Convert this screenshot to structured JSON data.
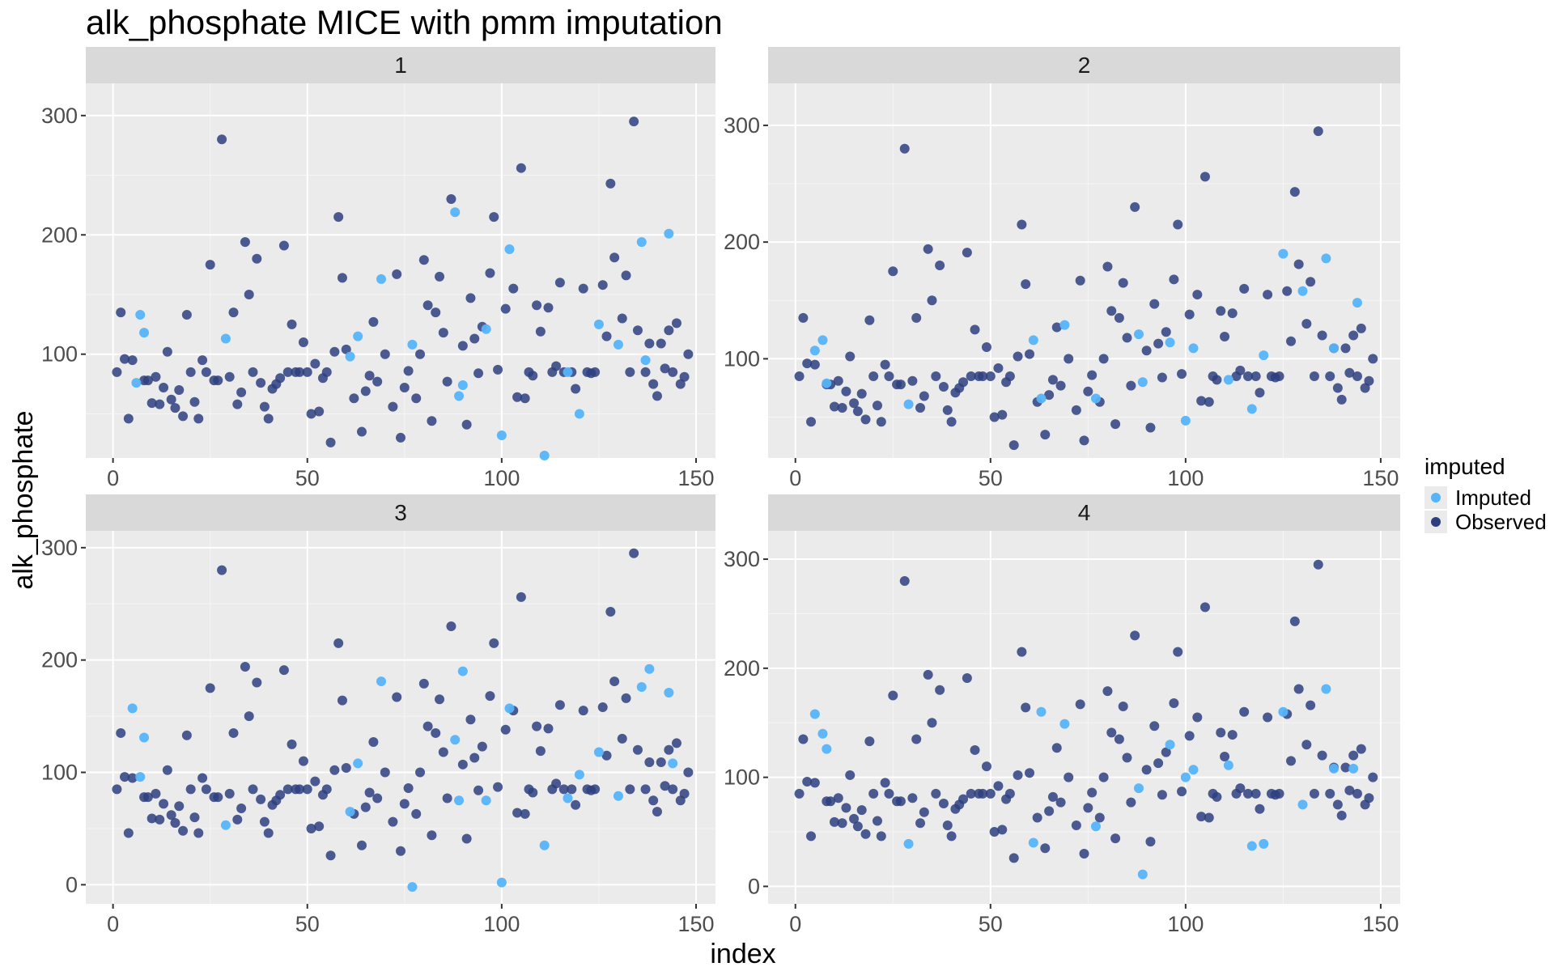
{
  "chart_data": {
    "type": "scatter",
    "title": "alk_phosphate MICE with pmm imputation",
    "xlabel": "index",
    "ylabel": "alk_phosphate",
    "xlim": [
      -7,
      155
    ],
    "x_ticks": [
      0,
      50,
      100,
      150
    ],
    "legend": {
      "title": "imputed",
      "position": "right",
      "entries": [
        {
          "label": "Imputed",
          "color": "#56B4F9"
        },
        {
          "label": "Observed",
          "color": "#2E3F7F"
        }
      ]
    },
    "observed_series": {
      "name": "Observed",
      "points": [
        [
          1,
          85
        ],
        [
          2,
          135
        ],
        [
          3,
          96
        ],
        [
          4,
          46
        ],
        [
          5,
          95
        ],
        [
          8,
          78
        ],
        [
          9,
          78
        ],
        [
          10,
          59
        ],
        [
          11,
          81
        ],
        [
          12,
          58
        ],
        [
          13,
          72
        ],
        [
          14,
          102
        ],
        [
          15,
          62
        ],
        [
          16,
          55
        ],
        [
          17,
          70
        ],
        [
          18,
          48
        ],
        [
          19,
          133
        ],
        [
          20,
          85
        ],
        [
          21,
          60
        ],
        [
          22,
          46
        ],
        [
          23,
          95
        ],
        [
          24,
          85
        ],
        [
          25,
          175
        ],
        [
          26,
          78
        ],
        [
          27,
          78
        ],
        [
          28,
          280
        ],
        [
          30,
          81
        ],
        [
          31,
          135
        ],
        [
          32,
          58
        ],
        [
          33,
          68
        ],
        [
          34,
          194
        ],
        [
          35,
          150
        ],
        [
          36,
          85
        ],
        [
          37,
          180
        ],
        [
          38,
          76
        ],
        [
          39,
          56
        ],
        [
          40,
          46
        ],
        [
          41,
          71
        ],
        [
          42,
          75
        ],
        [
          43,
          80
        ],
        [
          44,
          191
        ],
        [
          45,
          85
        ],
        [
          46,
          125
        ],
        [
          47,
          85
        ],
        [
          48,
          85
        ],
        [
          49,
          110
        ],
        [
          50,
          85
        ],
        [
          51,
          50
        ],
        [
          52,
          92
        ],
        [
          53,
          52
        ],
        [
          54,
          80
        ],
        [
          55,
          85
        ],
        [
          56,
          26
        ],
        [
          57,
          102
        ],
        [
          58,
          215
        ],
        [
          59,
          164
        ],
        [
          60,
          104
        ],
        [
          62,
          63
        ],
        [
          64,
          35
        ],
        [
          65,
          69
        ],
        [
          66,
          82
        ],
        [
          67,
          127
        ],
        [
          68,
          77
        ],
        [
          70,
          100
        ],
        [
          72,
          56
        ],
        [
          73,
          167
        ],
        [
          74,
          30
        ],
        [
          75,
          72
        ],
        [
          76,
          86
        ],
        [
          78,
          63
        ],
        [
          79,
          100
        ],
        [
          80,
          179
        ],
        [
          81,
          141
        ],
        [
          82,
          44
        ],
        [
          83,
          135
        ],
        [
          84,
          165
        ],
        [
          85,
          118
        ],
        [
          86,
          77
        ],
        [
          87,
          230
        ],
        [
          90,
          107
        ],
        [
          91,
          41
        ],
        [
          92,
          147
        ],
        [
          93,
          113
        ],
        [
          94,
          84
        ],
        [
          95,
          123
        ],
        [
          97,
          168
        ],
        [
          98,
          215
        ],
        [
          99,
          87
        ],
        [
          101,
          138
        ],
        [
          103,
          155
        ],
        [
          104,
          64
        ],
        [
          105,
          256
        ],
        [
          106,
          63
        ],
        [
          107,
          85
        ],
        [
          108,
          82
        ],
        [
          109,
          141
        ],
        [
          110,
          119
        ],
        [
          112,
          139
        ],
        [
          113,
          85
        ],
        [
          114,
          90
        ],
        [
          115,
          160
        ],
        [
          116,
          85
        ],
        [
          118,
          85
        ],
        [
          119,
          71
        ],
        [
          121,
          155
        ],
        [
          122,
          85
        ],
        [
          123,
          84
        ],
        [
          124,
          85
        ],
        [
          126,
          158
        ],
        [
          127,
          115
        ],
        [
          128,
          243
        ],
        [
          129,
          181
        ],
        [
          131,
          130
        ],
        [
          132,
          166
        ],
        [
          133,
          85
        ],
        [
          134,
          295
        ],
        [
          135,
          120
        ],
        [
          137,
          85
        ],
        [
          138,
          109
        ],
        [
          139,
          75
        ],
        [
          140,
          65
        ],
        [
          141,
          109
        ],
        [
          142,
          88
        ],
        [
          143,
          120
        ],
        [
          144,
          85
        ],
        [
          145,
          126
        ],
        [
          146,
          75
        ],
        [
          147,
          81
        ],
        [
          148,
          100
        ]
      ]
    },
    "panels": [
      {
        "label": "1",
        "ylim": [
          13,
          327
        ],
        "y_ticks": [
          100,
          200,
          300
        ],
        "imputed": [
          [
            6,
            76
          ],
          [
            7,
            133
          ],
          [
            8,
            118
          ],
          [
            29,
            113
          ],
          [
            61,
            98
          ],
          [
            63,
            115
          ],
          [
            69,
            163
          ],
          [
            77,
            108
          ],
          [
            88,
            219
          ],
          [
            89,
            65
          ],
          [
            90,
            74
          ],
          [
            96,
            121
          ],
          [
            100,
            32
          ],
          [
            102,
            188
          ],
          [
            111,
            15
          ],
          [
            117,
            85
          ],
          [
            120,
            50
          ],
          [
            125,
            125
          ],
          [
            130,
            108
          ],
          [
            136,
            194
          ],
          [
            137,
            95
          ],
          [
            143,
            201
          ]
        ]
      },
      {
        "label": "2",
        "ylim": [
          15,
          336
        ],
        "y_ticks": [
          100,
          200,
          300
        ],
        "imputed": [
          [
            5,
            107
          ],
          [
            7,
            116
          ],
          [
            8,
            79
          ],
          [
            29,
            61
          ],
          [
            61,
            116
          ],
          [
            63,
            66
          ],
          [
            69,
            129
          ],
          [
            77,
            66
          ],
          [
            88,
            121
          ],
          [
            89,
            80
          ],
          [
            96,
            114
          ],
          [
            100,
            47
          ],
          [
            102,
            109
          ],
          [
            111,
            82
          ],
          [
            117,
            57
          ],
          [
            120,
            103
          ],
          [
            125,
            190
          ],
          [
            130,
            158
          ],
          [
            136,
            186
          ],
          [
            138,
            109
          ],
          [
            144,
            148
          ]
        ]
      },
      {
        "label": "3",
        "ylim": [
          -17,
          315
        ],
        "y_ticks": [
          0,
          100,
          200,
          300
        ],
        "imputed": [
          [
            5,
            157
          ],
          [
            7,
            96
          ],
          [
            8,
            131
          ],
          [
            29,
            53
          ],
          [
            61,
            65
          ],
          [
            63,
            108
          ],
          [
            69,
            181
          ],
          [
            77,
            -2
          ],
          [
            88,
            129
          ],
          [
            89,
            75
          ],
          [
            90,
            190
          ],
          [
            96,
            75
          ],
          [
            100,
            2
          ],
          [
            102,
            157
          ],
          [
            111,
            35
          ],
          [
            117,
            77
          ],
          [
            120,
            98
          ],
          [
            125,
            118
          ],
          [
            130,
            79
          ],
          [
            136,
            176
          ],
          [
            138,
            192
          ],
          [
            143,
            171
          ],
          [
            144,
            108
          ]
        ]
      },
      {
        "label": "4",
        "ylim": [
          -16,
          326
        ],
        "y_ticks": [
          0,
          100,
          200,
          300
        ],
        "imputed": [
          [
            5,
            158
          ],
          [
            7,
            140
          ],
          [
            8,
            126
          ],
          [
            29,
            39
          ],
          [
            61,
            40
          ],
          [
            63,
            160
          ],
          [
            69,
            149
          ],
          [
            77,
            55
          ],
          [
            88,
            90
          ],
          [
            89,
            11
          ],
          [
            96,
            130
          ],
          [
            100,
            100
          ],
          [
            102,
            107
          ],
          [
            111,
            111
          ],
          [
            117,
            37
          ],
          [
            120,
            39
          ],
          [
            125,
            160
          ],
          [
            130,
            75
          ],
          [
            136,
            181
          ],
          [
            138,
            108
          ],
          [
            143,
            108
          ]
        ]
      }
    ]
  }
}
